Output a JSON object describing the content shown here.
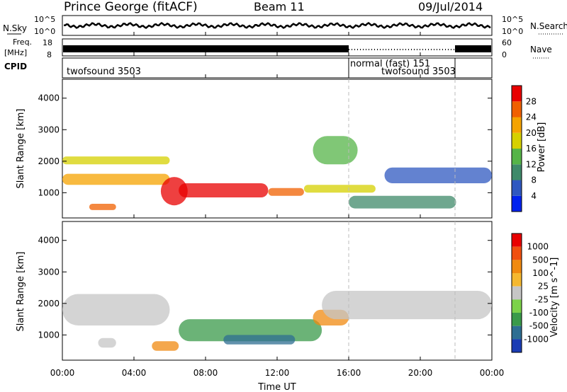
{
  "header": {
    "site": "Prince George (fitACF)",
    "beam": "Beam 11",
    "date": "09/Jul/2014"
  },
  "strips": {
    "nsky_label": "N.Sky",
    "nsky_ticks": [
      "10^5",
      "10^0"
    ],
    "nsearch_label": "N.Search",
    "nsearch_ticks": [
      "10^5",
      "10^0"
    ],
    "freq_label_1": "Freq.",
    "freq_label_2": "[MHz]",
    "freq_ticks": [
      "18",
      "8"
    ],
    "nave_label": "Nave",
    "nave_ticks": [
      "60",
      "0"
    ],
    "cpid_label": "CPID",
    "cpid_segments": [
      "twofsound 3503",
      "normal (fast) 151",
      "twofsound 3503"
    ]
  },
  "chart_data": [
    {
      "type": "heatmap",
      "name": "power-panel",
      "ylabel": "Slant Range [km]",
      "y_ticks": [
        1000,
        2000,
        3000,
        4000
      ],
      "ylim": [
        200,
        4600
      ],
      "x_ticks": [
        "00:00",
        "04:00",
        "08:00",
        "12:00",
        "16:00",
        "20:00",
        "00:00"
      ],
      "xlim_hours": [
        0,
        24
      ],
      "colorbar": {
        "label": "Power [dB]",
        "ticks": [
          "4",
          "8",
          "12",
          "16",
          "20",
          "24",
          "28"
        ],
        "colors": [
          "#0022ee",
          "#2f58c0",
          "#3f8a6a",
          "#56b448",
          "#d6d000",
          "#f5a300",
          "#f06000",
          "#e80000"
        ]
      },
      "blobs": [
        {
          "t0": 0.0,
          "t1": 6.0,
          "r0": 1900,
          "r1": 2150,
          "level": 4
        },
        {
          "t0": 0.0,
          "t1": 6.0,
          "r0": 1250,
          "r1": 1600,
          "level": 5
        },
        {
          "t0": 1.5,
          "t1": 3.0,
          "r0": 450,
          "r1": 650,
          "level": 6
        },
        {
          "t0": 5.5,
          "t1": 7.0,
          "r0": 600,
          "r1": 1500,
          "level": 7
        },
        {
          "t0": 6.5,
          "t1": 11.5,
          "r0": 850,
          "r1": 1300,
          "level": 7
        },
        {
          "t0": 11.5,
          "t1": 13.5,
          "r0": 900,
          "r1": 1150,
          "level": 6
        },
        {
          "t0": 13.5,
          "t1": 17.5,
          "r0": 1000,
          "r1": 1250,
          "level": 4
        },
        {
          "t0": 14.0,
          "t1": 16.5,
          "r0": 1900,
          "r1": 2800,
          "level": 3
        },
        {
          "t0": 16.0,
          "t1": 22.0,
          "r0": 500,
          "r1": 900,
          "level": 2
        },
        {
          "t0": 18.0,
          "t1": 24.0,
          "r0": 1300,
          "r1": 1800,
          "level": 1
        }
      ]
    },
    {
      "type": "heatmap",
      "name": "velocity-panel",
      "ylabel": "Slant Range [km]",
      "y_ticks": [
        1000,
        2000,
        3000,
        4000
      ],
      "ylim": [
        200,
        4600
      ],
      "x_ticks": [
        "00:00",
        "04:00",
        "08:00",
        "12:00",
        "16:00",
        "20:00",
        "00:00"
      ],
      "xlim_hours": [
        0,
        24
      ],
      "xlabel": "Time UT",
      "colorbar": {
        "label": "Velocity [m s^-1]",
        "ticks": [
          "1000",
          "500",
          "100",
          "25",
          "-25",
          "-100",
          "-500",
          "-1000"
        ],
        "colors": [
          "#1a3cb4",
          "#2e6e92",
          "#3a9a4a",
          "#7cd24a",
          "#c6c6c6",
          "#f5b830",
          "#f08a10",
          "#f05010",
          "#e80000"
        ]
      },
      "blobs": [
        {
          "t0": 0.0,
          "t1": 6.0,
          "r0": 1300,
          "r1": 2300,
          "level": 4
        },
        {
          "t0": 2.0,
          "t1": 3.0,
          "r0": 600,
          "r1": 900,
          "level": 4
        },
        {
          "t0": 5.0,
          "t1": 6.5,
          "r0": 500,
          "r1": 800,
          "level": 6
        },
        {
          "t0": 6.5,
          "t1": 14.5,
          "r0": 800,
          "r1": 1500,
          "level": 2
        },
        {
          "t0": 9.0,
          "t1": 13.0,
          "r0": 700,
          "r1": 1000,
          "level": 1
        },
        {
          "t0": 14.0,
          "t1": 16.0,
          "r0": 1300,
          "r1": 1800,
          "level": 6
        },
        {
          "t0": 14.5,
          "t1": 24.0,
          "r0": 1500,
          "r1": 2400,
          "level": 4
        }
      ]
    }
  ],
  "axis_units": {
    "time_xlabel": "Time UT"
  }
}
